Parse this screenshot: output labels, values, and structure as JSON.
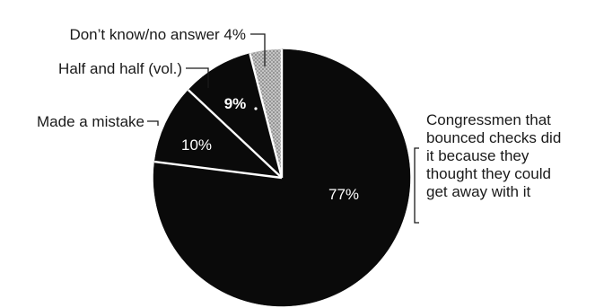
{
  "chart_data": {
    "type": "pie",
    "start_angle_deg": 0,
    "direction": "clockwise",
    "slices": [
      {
        "label": "Congressmen that bounced checks did it because they thought they could get away with it",
        "label_lines": [
          "Congressmen that",
          "bounced checks did",
          "it because they",
          "thought they could",
          "get away with it"
        ],
        "value": 77,
        "value_label": "77%",
        "color": "#0a0a0a",
        "hatched": false
      },
      {
        "label": "Made a mistake",
        "label_lines": [
          "Made a mistake"
        ],
        "value": 10,
        "value_label": "10%",
        "color": "#0a0a0a",
        "hatched": false
      },
      {
        "label": "Half and half (vol.)",
        "label_lines": [
          "Half and half (vol.)"
        ],
        "value": 9,
        "value_label": "9%",
        "color": "#0a0a0a",
        "hatched": false
      },
      {
        "label": "Don’t know/no answer 4%",
        "label_lines": [
          "Don’t know/no answer 4%"
        ],
        "value": 4,
        "value_label": "",
        "color": "#b8b8b8",
        "hatched": true
      }
    ],
    "separator_color": "#ffffff",
    "legend": "none"
  }
}
